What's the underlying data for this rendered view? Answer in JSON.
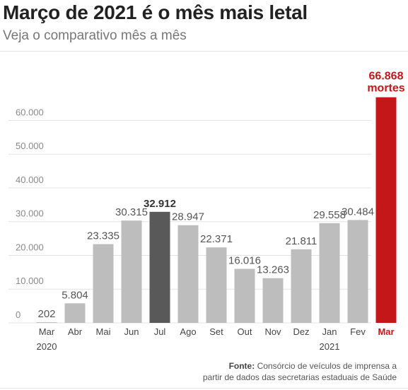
{
  "header": {
    "title": "Março de 2021 é o mês mais letal",
    "subtitle": "Veja o comparativo mês a mês"
  },
  "source": {
    "label": "Fonte:",
    "line1": "Consórcio de veículos de imprensa a",
    "line2": "partir de dados das secretarias estaduais de Saúde"
  },
  "colors": {
    "bar_default": "#bdbdbd",
    "bar_highlight": "#595959",
    "bar_accent": "#c4171a",
    "grid": "#e3e3e3",
    "axis_text": "#8a8a8a",
    "label_text": "#555555"
  },
  "chart_data": {
    "type": "bar",
    "title": "Março de 2021 é o mês mais letal",
    "xlabel": "",
    "ylabel": "",
    "ylim": [
      0,
      67000
    ],
    "yticks": [
      0,
      10000,
      20000,
      30000,
      40000,
      50000,
      60000
    ],
    "ytick_labels": [
      "0",
      "10.000",
      "20.000",
      "30.000",
      "40.000",
      "50.000",
      "60.000"
    ],
    "categories": [
      "Mar",
      "Abr",
      "Mai",
      "Jun",
      "Jul",
      "Ago",
      "Set",
      "Out",
      "Nov",
      "Dez",
      "Jan",
      "Fev",
      "Mar"
    ],
    "category_sublabels": [
      "2020",
      "",
      "",
      "",
      "",
      "",
      "",
      "",
      "",
      "",
      "2021",
      "",
      ""
    ],
    "values": [
      202,
      5804,
      23335,
      30315,
      32912,
      28947,
      22371,
      16016,
      13263,
      21811,
      29558,
      30484,
      66868
    ],
    "value_labels": [
      "202",
      "5.804",
      "23.335",
      "30.315",
      "32.912",
      "28.947",
      "22.371",
      "16.016",
      "13.263",
      "21.811",
      "29.558",
      "30.484",
      "66.868"
    ],
    "value_label_suffix_last": "mortes",
    "highlight_index": 4,
    "accent_index": 12,
    "grid": true
  }
}
